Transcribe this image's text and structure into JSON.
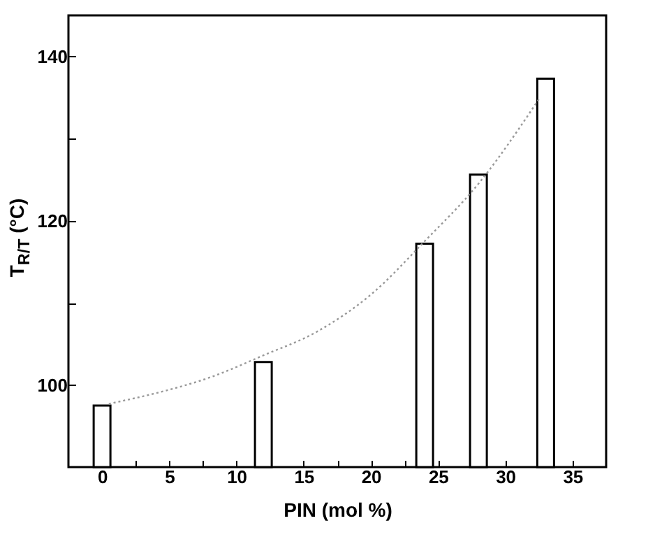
{
  "chart_data": {
    "type": "bar",
    "xlabel": "PIN (mol %)",
    "ylabel": "T$_{R/T}$ (°C)",
    "x": [
      0,
      12,
      24,
      28,
      33
    ],
    "series": [
      {
        "color": "#ffffff",
        "values": [
          97.5,
          102.8,
          117.2,
          125.6,
          137.3
        ]
      },
      {
        "type": "line",
        "color": "#999999",
        "line_style": "dotted",
        "x": [
          0.5,
          4,
          8,
          12,
          16,
          20,
          24,
          28,
          32.5
        ],
        "values": [
          97.7,
          99,
          100.9,
          103.6,
          106.5,
          111,
          117.5,
          124.5,
          134.8
        ]
      }
    ],
    "xlim": [
      -2.5,
      37.5
    ],
    "xticks": [
      0,
      {
        "value": 2.5,
        "label": null
      },
      5,
      {
        "value": 7.5,
        "label": null
      },
      10,
      {
        "value": 12.5,
        "label": null
      },
      15,
      {
        "value": 17.5,
        "label": null
      },
      20,
      {
        "value": 22.5,
        "label": null
      },
      25,
      {
        "value": 27.5,
        "label": null
      },
      30,
      {
        "value": 32.5,
        "label": null
      },
      35
    ],
    "ylim": [
      90,
      145
    ],
    "yticks": [
      100,
      {
        "value": 110,
        "label": null
      },
      120,
      {
        "value": 130,
        "label": null
      },
      140
    ],
    "grid": false,
    "marker": "none"
  }
}
